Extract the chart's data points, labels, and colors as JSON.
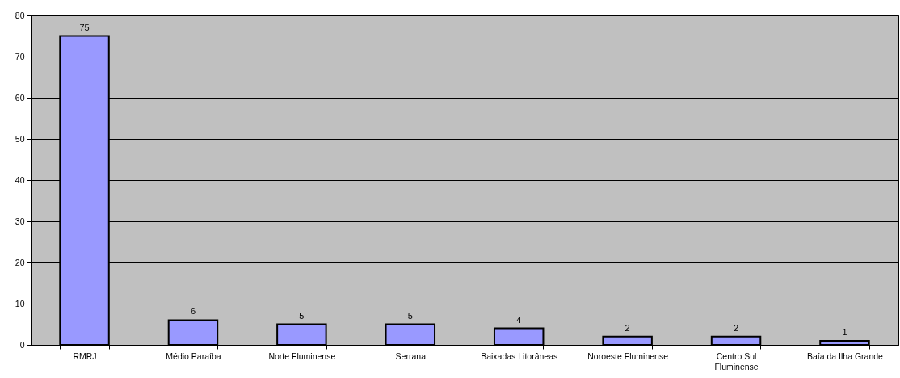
{
  "chart_data": {
    "type": "bar",
    "categories": [
      "RMRJ",
      "Médio Paraíba",
      "Norte Fluminense",
      "Serrana",
      "Baixadas Litorâneas",
      "Noroeste Fluminense",
      "Centro Sul Fluminense",
      "Baía da Ilha Grande"
    ],
    "values": [
      75,
      6,
      5,
      5,
      4,
      2,
      2,
      1
    ],
    "color": "#9999ff",
    "ylim": [
      0,
      80
    ],
    "yticks": [
      0,
      10,
      20,
      30,
      40,
      50,
      60,
      70,
      80
    ],
    "grid": "y",
    "data_labels": true
  }
}
